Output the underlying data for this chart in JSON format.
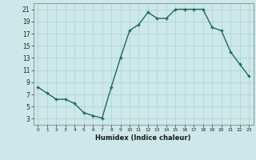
{
  "x": [
    0,
    1,
    2,
    3,
    4,
    5,
    6,
    7,
    8,
    9,
    10,
    11,
    12,
    13,
    14,
    15,
    16,
    17,
    18,
    19,
    20,
    21,
    22,
    23
  ],
  "y": [
    8.2,
    7.2,
    6.2,
    6.2,
    5.5,
    4.0,
    3.5,
    3.1,
    8.2,
    13.0,
    17.5,
    18.5,
    20.5,
    19.5,
    19.5,
    21.0,
    21.0,
    21.0,
    21.0,
    18.0,
    17.5,
    14.0,
    12.0,
    10.0
  ],
  "line_color": "#1a6b5a",
  "marker": "+",
  "marker_size": 3,
  "xlabel": "Humidex (Indice chaleur)",
  "xlim": [
    -0.5,
    23.5
  ],
  "ylim": [
    2,
    22
  ],
  "yticks": [
    3,
    5,
    7,
    9,
    11,
    13,
    15,
    17,
    19,
    21
  ],
  "xticks": [
    0,
    1,
    2,
    3,
    4,
    5,
    6,
    7,
    8,
    9,
    10,
    11,
    12,
    13,
    14,
    15,
    16,
    17,
    18,
    19,
    20,
    21,
    22,
    23
  ],
  "bg_color": "#cde8e8",
  "grid_color": "#aacfcf",
  "line_width": 1.0
}
